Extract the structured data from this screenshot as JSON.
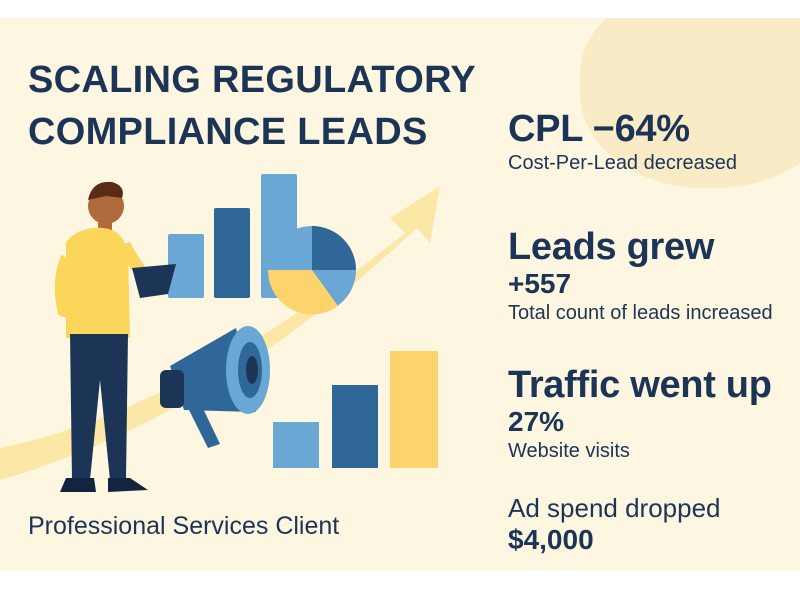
{
  "title_lines": [
    "SCALING REGULATORY",
    "COMPLIANCE LEADS"
  ],
  "client": "Professional Services Client",
  "stats": {
    "cpl": {
      "headline": "CPL −64%",
      "desc": "Cost-Per-Lead decreased"
    },
    "leads": {
      "headline": "Leads grew",
      "value": "+557",
      "desc": "Total count of leads increased"
    },
    "traffic": {
      "headline": "Traffic went up",
      "value": "27%",
      "desc": "Website visits"
    },
    "spend": {
      "headline": "Ad spend dropped",
      "value": "$4,000"
    }
  },
  "colors": {
    "navy": "#1c3557",
    "background": "#fdf6e0",
    "arrow": "#fbe7a6",
    "yellow": "#fdd46b",
    "light_blue": "#6aa7d4",
    "dark_blue": "#2f6798",
    "shirt": "#fbd65a"
  },
  "icons": [
    "person-illustration",
    "clipboard-icon",
    "bar-chart-icon",
    "pie-chart-icon",
    "megaphone-icon",
    "growth-arrow"
  ]
}
